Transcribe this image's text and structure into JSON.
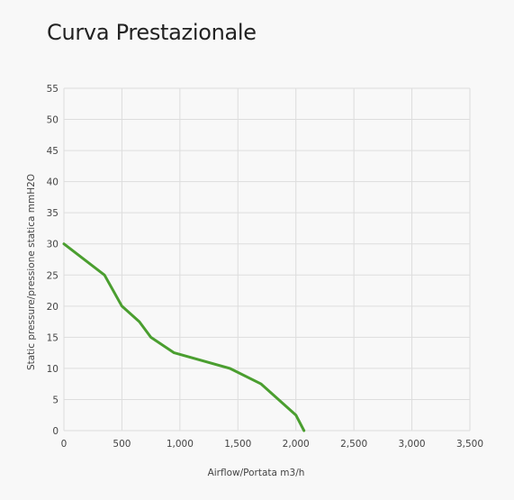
{
  "page": {
    "title": "Curva Prestazionale"
  },
  "chart_data": {
    "type": "line",
    "title": "Curva Prestazionale",
    "xlabel": "Airflow/Portata m3/h",
    "ylabel": "Static pressure/pressione statica mmH2O",
    "xlim": [
      0,
      3500
    ],
    "ylim": [
      0,
      55
    ],
    "x_ticks": [
      0,
      500,
      1000,
      1500,
      2000,
      2500,
      3000,
      3500
    ],
    "x_tick_labels": [
      "0",
      "500",
      "1,000",
      "1,500",
      "2,000",
      "2,500",
      "3,000",
      "3,500"
    ],
    "y_ticks": [
      0,
      5,
      10,
      15,
      20,
      25,
      30,
      35,
      40,
      45,
      50,
      55
    ],
    "y_tick_labels": [
      "0",
      "5",
      "10",
      "15",
      "20",
      "25",
      "30",
      "35",
      "40",
      "45",
      "50",
      "55"
    ],
    "grid": true,
    "series": [
      {
        "color": "#4a9e2f",
        "x": [
          0,
          350,
          500,
          650,
          750,
          950,
          1430,
          1700,
          2000,
          2070
        ],
        "y": [
          30,
          25,
          20,
          17.5,
          15,
          12.5,
          10,
          7.5,
          2.5,
          0
        ]
      }
    ]
  }
}
